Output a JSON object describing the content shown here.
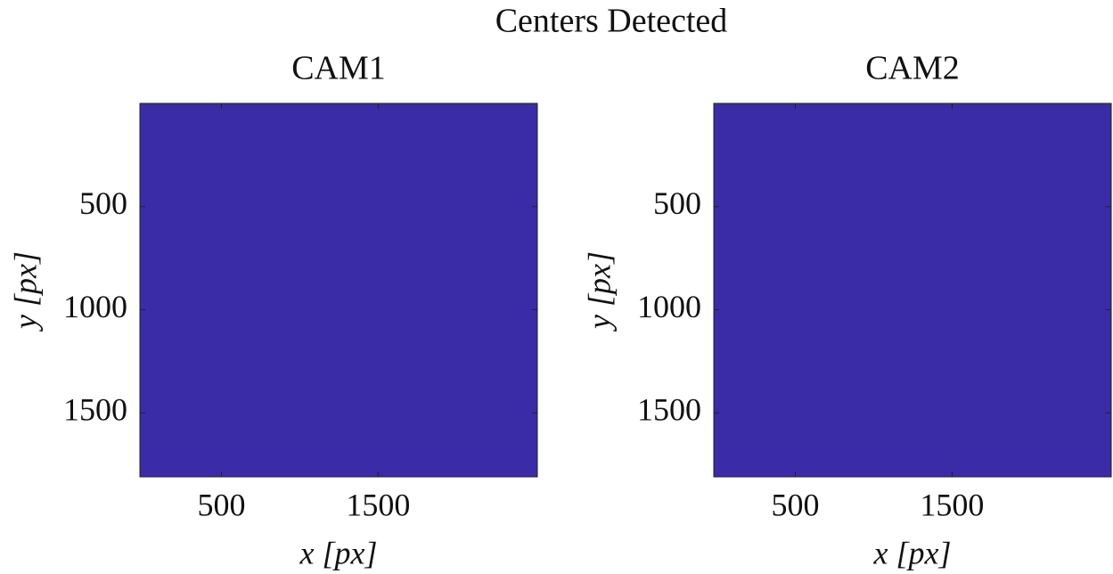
{
  "title": "Centers Detected",
  "chart_data": [
    {
      "type": "image",
      "title": "CAM1",
      "xlabel": "x [px]",
      "ylabel": "y [px]",
      "xlim": [
        -20,
        2515
      ],
      "ylim": [
        0,
        1810
      ],
      "y_reversed": true,
      "xticks": [
        500,
        1500
      ],
      "yticks": [
        500,
        1000,
        1500
      ],
      "color": "#3a2ca6"
    },
    {
      "type": "image",
      "title": "CAM2",
      "xlabel": "x [px]",
      "ylabel": "y [px]",
      "xlim": [
        -20,
        2515
      ],
      "ylim": [
        0,
        1810
      ],
      "y_reversed": true,
      "xticks": [
        500,
        1500
      ],
      "yticks": [
        500,
        1000,
        1500
      ],
      "color": "#3a2ca6"
    }
  ]
}
